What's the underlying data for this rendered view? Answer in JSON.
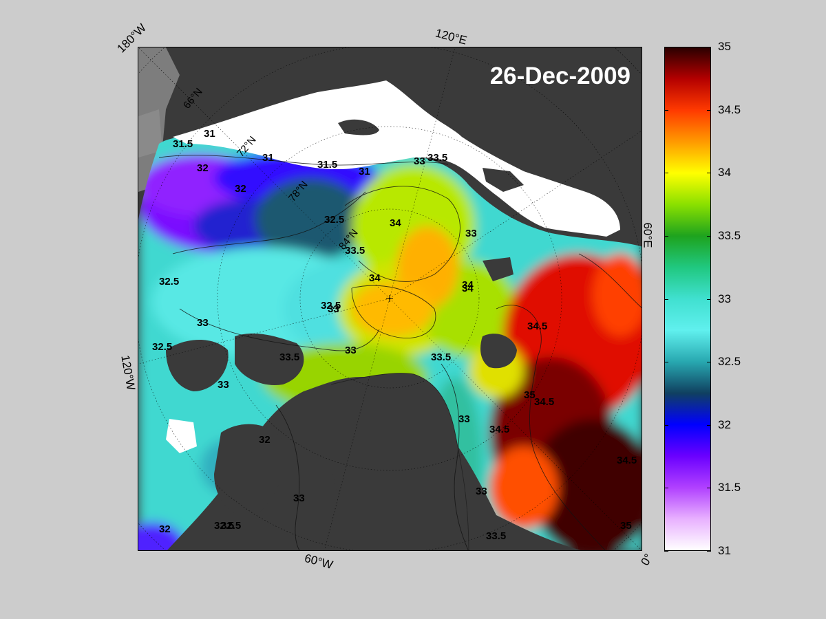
{
  "map": {
    "date": "26-Dec-2009",
    "longitude_labels": {
      "lon_180w": "180°W",
      "lon_120e": "120°E",
      "lon_60e": "60°E",
      "lon_120w": "120°W",
      "lon_60w": "60°W",
      "lon_0": "0°"
    },
    "latitude_labels": [
      "66°N",
      "72°N",
      "78°N",
      "84°N"
    ],
    "contour_labels": [
      "31",
      "31.5",
      "31",
      "31.5",
      "31",
      "32",
      "32",
      "32.5",
      "33",
      "33.5",
      "34",
      "34",
      "34",
      "33",
      "34",
      "34.5",
      "34.5",
      "34.5",
      "35",
      "33.5",
      "33",
      "32.5",
      "32.5",
      "32.5",
      "33",
      "33.5",
      "33",
      "33",
      "32.5",
      "33",
      "33",
      "32",
      "32.5",
      "32",
      "33.5",
      "33",
      "33.5",
      "34.5",
      "35"
    ],
    "colors": {
      "land": "#3a3a3a",
      "sea_ice": "#ffffff",
      "no_data": "#7a7a7a"
    }
  },
  "colorbar": {
    "min": 31,
    "max": 35,
    "ticks": [
      "35",
      "34.5",
      "34",
      "33.5",
      "33",
      "32.5",
      "32",
      "31.5",
      "31"
    ],
    "gradient_stops": [
      {
        "value": 35,
        "color": "#2a0000"
      },
      {
        "value": 34.75,
        "color": "#b40000"
      },
      {
        "value": 34.5,
        "color": "#ff3a00"
      },
      {
        "value": 34.25,
        "color": "#ff9a00"
      },
      {
        "value": 34,
        "color": "#ffff00"
      },
      {
        "value": 33.75,
        "color": "#8ae000"
      },
      {
        "value": 33.5,
        "color": "#1ea31e"
      },
      {
        "value": 33.25,
        "color": "#20c880"
      },
      {
        "value": 33,
        "color": "#40e0d0"
      },
      {
        "value": 32.75,
        "color": "#60f0ee"
      },
      {
        "value": 32.5,
        "color": "#28a8b0"
      },
      {
        "value": 32.25,
        "color": "#104060"
      },
      {
        "value": 32,
        "color": "#0000ff"
      },
      {
        "value": 31.75,
        "color": "#6a00ff"
      },
      {
        "value": 31.5,
        "color": "#b040ff"
      },
      {
        "value": 31.25,
        "color": "#e8b0ff"
      },
      {
        "value": 31,
        "color": "#ffffff"
      }
    ]
  }
}
